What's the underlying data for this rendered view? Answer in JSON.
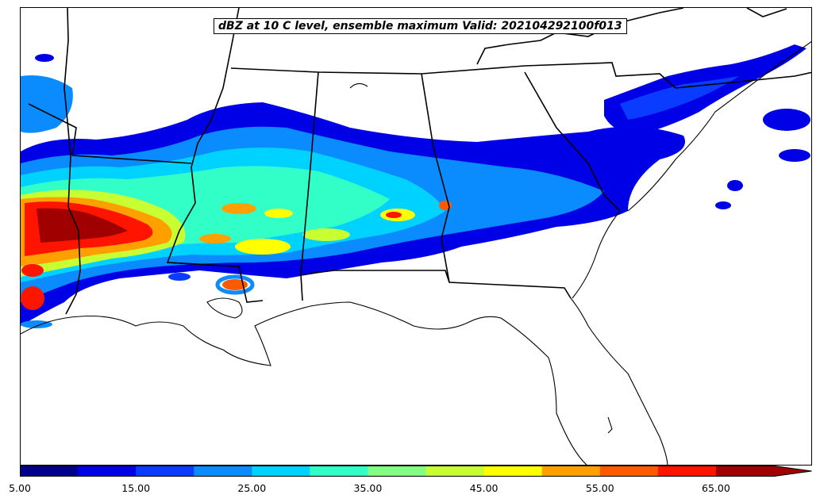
{
  "title": "dBZ at 10 C level, ensemble maximum Valid: 202104292100f013",
  "colorbar": {
    "colors": [
      "#00008c",
      "#0000e6",
      "#0a3cff",
      "#0a8cff",
      "#00d2ff",
      "#32ffc8",
      "#82ff82",
      "#c8ff32",
      "#ffff00",
      "#ffa000",
      "#ff5a00",
      "#ff1400",
      "#a00000"
    ],
    "tick_labels": [
      "5.00",
      "15.00",
      "25.00",
      "35.00",
      "45.00",
      "55.00",
      "65.00"
    ],
    "extend": "max"
  },
  "map": {
    "region": "Southeastern United States",
    "field": "reflectivity"
  }
}
